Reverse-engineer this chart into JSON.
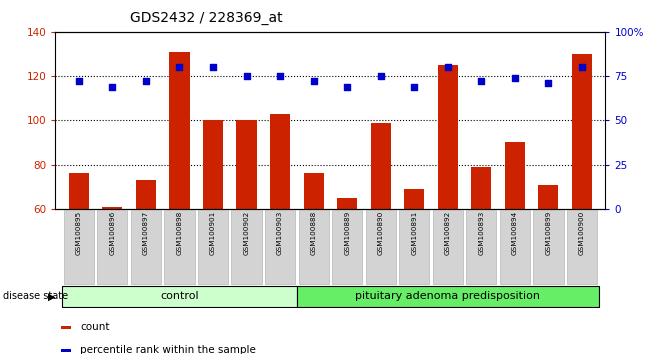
{
  "title": "GDS2432 / 228369_at",
  "samples": [
    "GSM100895",
    "GSM100896",
    "GSM100897",
    "GSM100898",
    "GSM100901",
    "GSM100902",
    "GSM100903",
    "GSM100888",
    "GSM100889",
    "GSM100890",
    "GSM100891",
    "GSM100892",
    "GSM100893",
    "GSM100894",
    "GSM100899",
    "GSM100900"
  ],
  "counts": [
    76,
    61,
    73,
    131,
    100,
    100,
    103,
    76,
    65,
    99,
    69,
    125,
    79,
    90,
    71,
    130
  ],
  "percentiles": [
    72,
    69,
    72,
    80,
    80,
    75,
    75,
    72,
    69,
    75,
    69,
    80,
    72,
    74,
    71,
    80
  ],
  "control_count": 7,
  "group_labels": [
    "control",
    "pituitary adenoma predisposition"
  ],
  "ylim_left": [
    60,
    140
  ],
  "ylim_right": [
    0,
    100
  ],
  "yticks_left": [
    60,
    80,
    100,
    120,
    140
  ],
  "yticks_right": [
    0,
    25,
    50,
    75,
    100
  ],
  "ytick_labels_right": [
    "0",
    "25",
    "50",
    "75",
    "100%"
  ],
  "bar_color": "#cc2200",
  "dot_color": "#0000cc",
  "bg_color": "#ffffff",
  "control_group_color": "#ccffcc",
  "disease_group_color": "#66ee66",
  "bar_label_color": "#cc2200",
  "dot_label_color": "#0000cc",
  "legend_count_label": "count",
  "legend_percentile_label": "percentile rank within the sample"
}
